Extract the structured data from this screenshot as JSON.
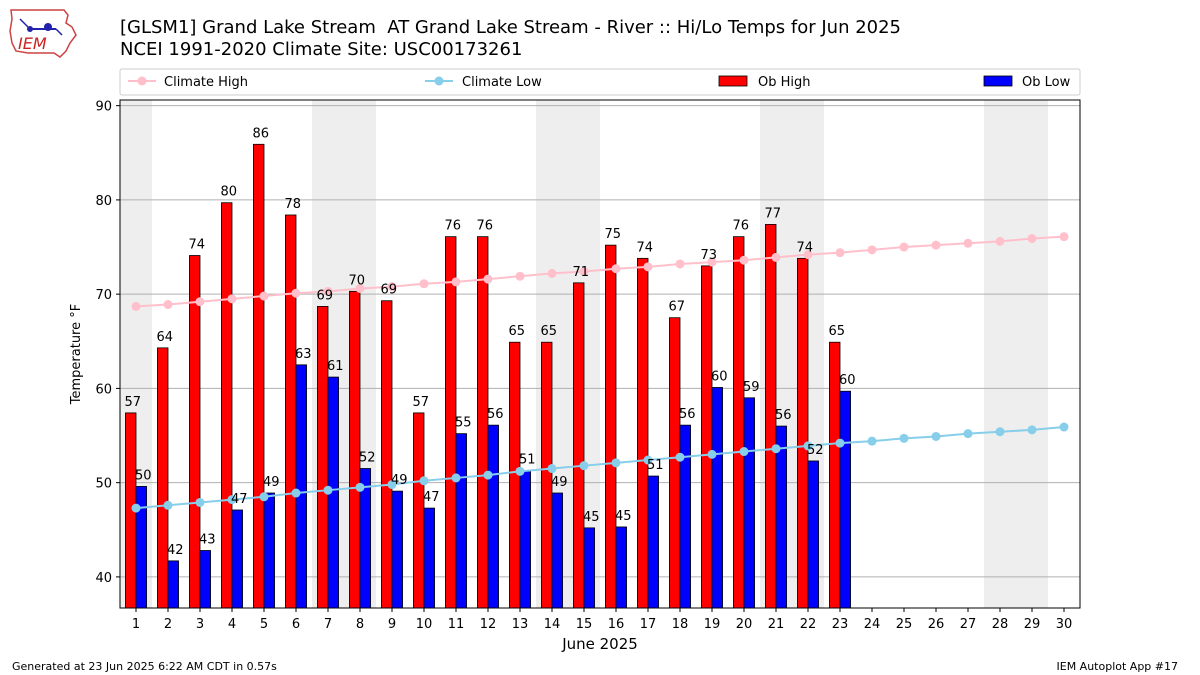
{
  "header": {
    "title_line1": "[GLSM1] Grand Lake Stream  AT Grand Lake Stream - River :: Hi/Lo Temps for Jun 2025",
    "title_line2": "NCEI 1991-2020 Climate Site: USC00173261"
  },
  "logo": {
    "text": "IEM"
  },
  "footer": {
    "generated": "Generated at 23 Jun 2025 6:22 AM CDT in 0.57s",
    "app": "IEM Autoplot App #17"
  },
  "colors": {
    "climate_high": "#ffc0cb",
    "climate_low": "#87ceeb",
    "ob_high": "#ff0000",
    "ob_low": "#0000ff",
    "weekend_shade": "#eeeeee",
    "grid": "#b0b0b0"
  },
  "chart_data": {
    "type": "bar",
    "xlabel": "June 2025",
    "ylabel": "Temperature °F",
    "xlim": [
      0.5,
      30.5
    ],
    "ylim": [
      36.7,
      90.6
    ],
    "yticks": [
      40,
      50,
      60,
      70,
      80,
      90
    ],
    "grid": "horizontal",
    "legend_position": "top",
    "legend": [
      "Climate High",
      "Climate Low",
      "Ob High",
      "Ob Low"
    ],
    "days": [
      1,
      2,
      3,
      4,
      5,
      6,
      7,
      8,
      9,
      10,
      11,
      12,
      13,
      14,
      15,
      16,
      17,
      18,
      19,
      20,
      21,
      22,
      23,
      24,
      25,
      26,
      27,
      28,
      29,
      30
    ],
    "weekend_spans": [
      [
        0.5,
        1.5
      ],
      [
        6.5,
        8.5
      ],
      [
        13.5,
        15.5
      ],
      [
        20.5,
        22.5
      ],
      [
        27.5,
        29.5
      ]
    ],
    "series": [
      {
        "name": "Ob High",
        "kind": "bar",
        "values": [
          57.4,
          64.3,
          74.1,
          79.7,
          85.9,
          78.4,
          68.7,
          70.3,
          69.3,
          57.4,
          76.1,
          76.1,
          64.9,
          64.9,
          71.2,
          75.2,
          73.8,
          67.5,
          73.0,
          76.1,
          77.4,
          73.8,
          64.9
        ]
      },
      {
        "name": "Ob Low",
        "kind": "bar",
        "values": [
          49.6,
          41.7,
          42.8,
          47.1,
          48.9,
          62.5,
          61.2,
          51.5,
          49.1,
          47.3,
          55.2,
          56.1,
          51.3,
          48.9,
          45.2,
          45.3,
          50.7,
          56.1,
          60.1,
          59.0,
          56.0,
          52.3,
          59.7
        ]
      },
      {
        "name": "Climate High",
        "kind": "line",
        "values": [
          68.7,
          68.9,
          69.2,
          69.5,
          69.8,
          70.1,
          70.3,
          70.6,
          70.8,
          71.1,
          71.3,
          71.6,
          71.9,
          72.2,
          72.4,
          72.7,
          72.9,
          73.2,
          73.4,
          73.6,
          73.9,
          74.2,
          74.4,
          74.7,
          75.0,
          75.2,
          75.4,
          75.6,
          75.9,
          76.1
        ]
      },
      {
        "name": "Climate Low",
        "kind": "line",
        "values": [
          47.3,
          47.6,
          47.9,
          48.2,
          48.5,
          48.9,
          49.2,
          49.5,
          49.8,
          50.2,
          50.5,
          50.8,
          51.2,
          51.5,
          51.8,
          52.1,
          52.4,
          52.7,
          53.0,
          53.3,
          53.6,
          53.9,
          54.2,
          54.4,
          54.7,
          54.9,
          55.2,
          55.4,
          55.6,
          55.9
        ]
      }
    ],
    "bar_labels": {
      "Ob High": [
        "57",
        "64",
        "74",
        "80",
        "86",
        "78",
        "69",
        "70",
        "69",
        "57",
        "76",
        "76",
        "65",
        "65",
        "71",
        "75",
        "74",
        "67",
        "73",
        "76",
        "77",
        "74",
        "65"
      ],
      "Ob Low": [
        "50",
        "42",
        "43",
        "47",
        "49",
        "63",
        "61",
        "52",
        "49",
        "47",
        "55",
        "56",
        "51",
        "49",
        "45",
        "45",
        "51",
        "56",
        "60",
        "59",
        "56",
        "52",
        "60"
      ]
    }
  }
}
